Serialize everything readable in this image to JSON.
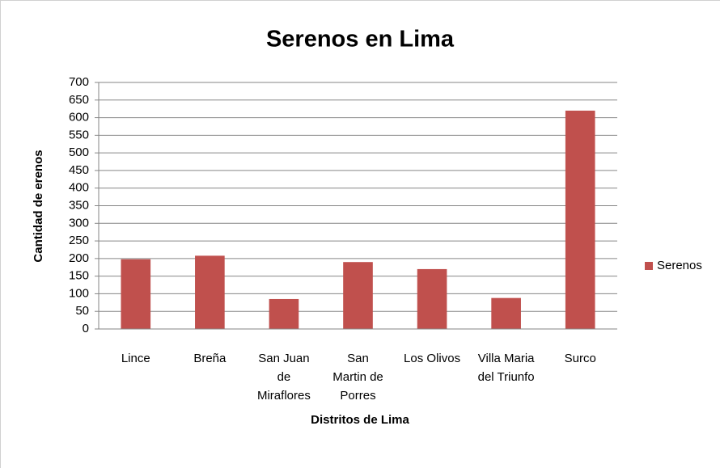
{
  "chart_data": {
    "type": "bar",
    "title": "Serenos en Lima",
    "x_label": "Distritos de Lima",
    "y_label": "Cantidad de erenos",
    "categories": [
      "Lince",
      "Breña",
      "San Juan de Miraflores",
      "San Martin de Porres",
      "Los Olivos",
      "Villa Maria del Triunfo",
      "Surco"
    ],
    "series": [
      {
        "name": "Serenos",
        "color": "#c0504d",
        "values": [
          198,
          208,
          85,
          190,
          170,
          88,
          620
        ]
      }
    ],
    "ylim": [
      0,
      700
    ],
    "yticks": [
      0,
      50,
      100,
      150,
      200,
      250,
      300,
      350,
      400,
      450,
      500,
      550,
      600,
      650,
      700
    ],
    "grid": true,
    "legend": "right"
  }
}
